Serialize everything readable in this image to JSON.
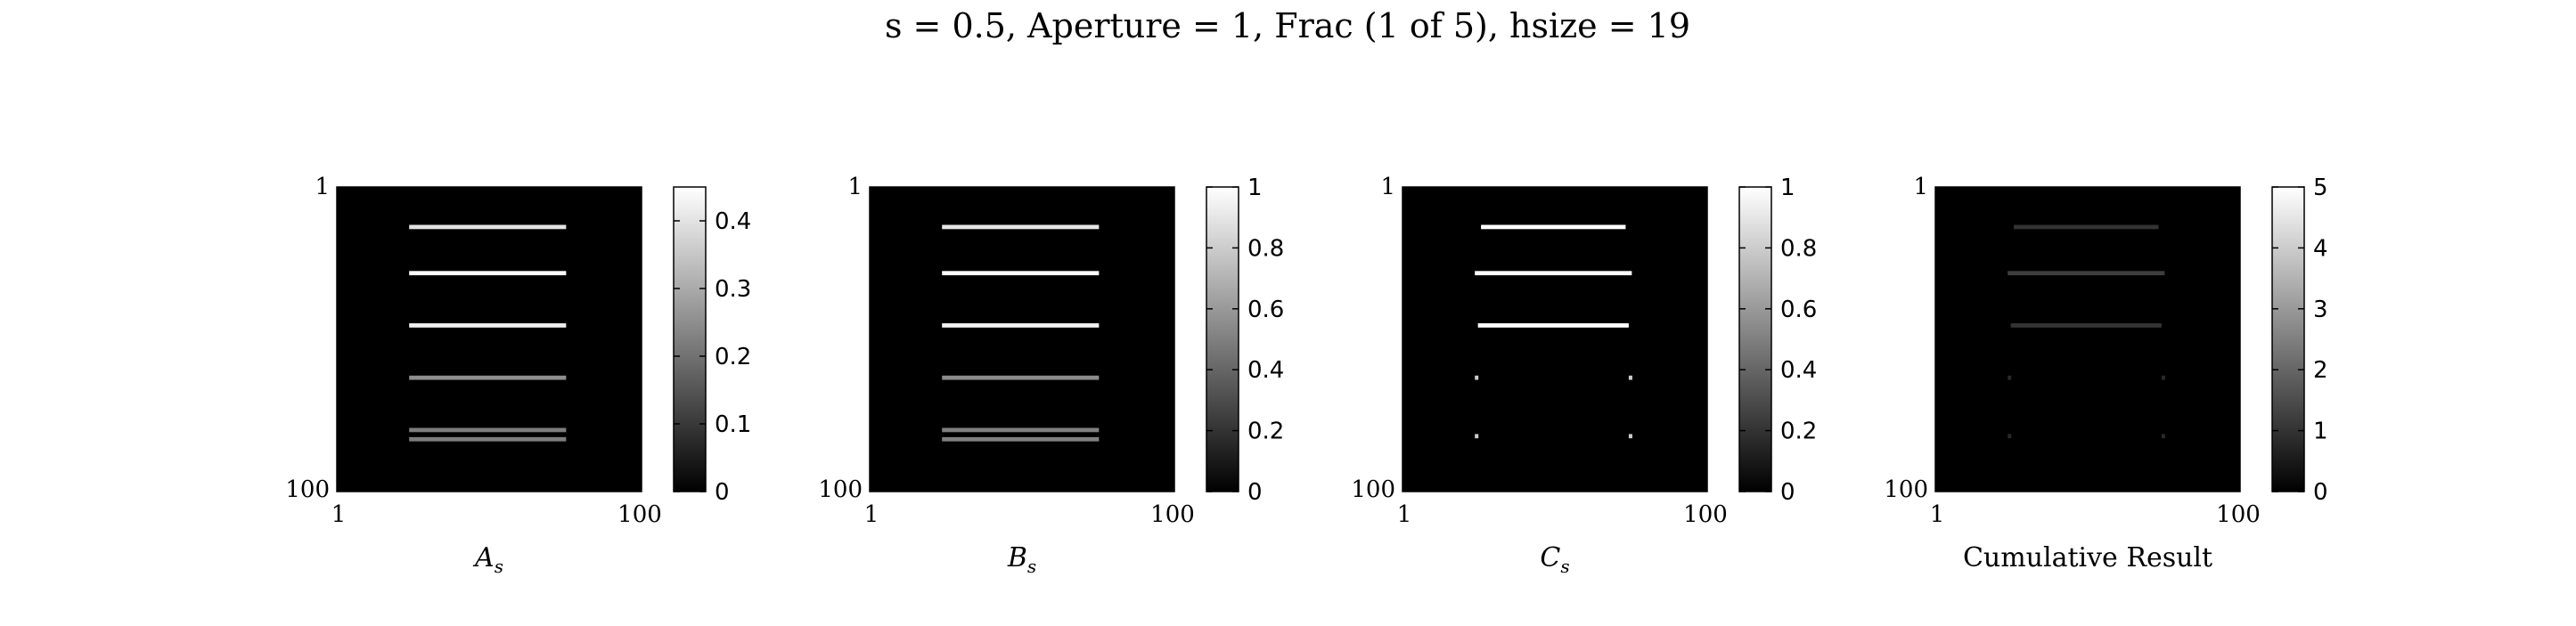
{
  "figure": {
    "title": "s = 0.5, Aperture = 1, Frac (1 of 5), hsize = 19"
  },
  "chart_data": [
    {
      "type": "heatmap",
      "xlabel": "A",
      "xlabel_sub": "s",
      "x_ticks": [
        "1",
        "100"
      ],
      "y_ticks": [
        "1",
        "100"
      ],
      "xlim": [
        1,
        100
      ],
      "ylim": [
        1,
        100
      ],
      "colormap": "gray",
      "background_value": 0,
      "colorbar": {
        "min": 0,
        "max": 0.45,
        "ticks": [
          "0",
          "0.1",
          "0.2",
          "0.3",
          "0.4"
        ],
        "tick_values": [
          0,
          0.1,
          0.2,
          0.3,
          0.4
        ]
      },
      "stripes": [
        {
          "row": 14,
          "x_start": 25,
          "x_end": 75,
          "value": 0.4
        },
        {
          "row": 29,
          "x_start": 25,
          "x_end": 75,
          "value": 0.45
        },
        {
          "row": 46,
          "x_start": 25,
          "x_end": 75,
          "value": 0.42
        },
        {
          "row": 63,
          "x_start": 25,
          "x_end": 75,
          "value": 0.25
        },
        {
          "row": 80,
          "x_start": 25,
          "x_end": 75,
          "value": 0.22
        },
        {
          "row": 83,
          "x_start": 25,
          "x_end": 75,
          "value": 0.22
        }
      ]
    },
    {
      "type": "heatmap",
      "xlabel": "B",
      "xlabel_sub": "s",
      "x_ticks": [
        "1",
        "100"
      ],
      "y_ticks": [
        "1",
        "100"
      ],
      "xlim": [
        1,
        100
      ],
      "ylim": [
        1,
        100
      ],
      "colormap": "gray",
      "background_value": 0,
      "colorbar": {
        "min": 0,
        "max": 1,
        "ticks": [
          "0",
          "0.2",
          "0.4",
          "0.6",
          "0.8",
          "1"
        ],
        "tick_values": [
          0,
          0.2,
          0.4,
          0.6,
          0.8,
          1
        ]
      },
      "stripes": [
        {
          "row": 14,
          "x_start": 25,
          "x_end": 75,
          "value": 0.9
        },
        {
          "row": 29,
          "x_start": 25,
          "x_end": 75,
          "value": 1.0
        },
        {
          "row": 46,
          "x_start": 25,
          "x_end": 75,
          "value": 0.95
        },
        {
          "row": 63,
          "x_start": 25,
          "x_end": 75,
          "value": 0.55
        },
        {
          "row": 80,
          "x_start": 25,
          "x_end": 75,
          "value": 0.5
        },
        {
          "row": 83,
          "x_start": 25,
          "x_end": 75,
          "value": 0.5
        }
      ]
    },
    {
      "type": "heatmap",
      "xlabel": "C",
      "xlabel_sub": "s",
      "x_ticks": [
        "1",
        "100"
      ],
      "y_ticks": [
        "1",
        "100"
      ],
      "xlim": [
        1,
        100
      ],
      "ylim": [
        1,
        100
      ],
      "colormap": "gray",
      "background_value": 0,
      "colorbar": {
        "min": 0,
        "max": 1,
        "ticks": [
          "0",
          "0.2",
          "0.4",
          "0.6",
          "0.8",
          "1"
        ],
        "tick_values": [
          0,
          0.2,
          0.4,
          0.6,
          0.8,
          1
        ]
      },
      "stripes": [
        {
          "row": 14,
          "x_start": 27,
          "x_end": 73,
          "value": 1.0
        },
        {
          "row": 29,
          "x_start": 25,
          "x_end": 75,
          "value": 1.0
        },
        {
          "row": 46,
          "x_start": 26,
          "x_end": 74,
          "value": 1.0
        },
        {
          "row": 63,
          "x_start": 25,
          "x_end": 25,
          "value": 0.8
        },
        {
          "row": 63,
          "x_start": 75,
          "x_end": 75,
          "value": 0.8
        },
        {
          "row": 82,
          "x_start": 25,
          "x_end": 25,
          "value": 0.8
        },
        {
          "row": 82,
          "x_start": 75,
          "x_end": 75,
          "value": 0.8
        }
      ]
    },
    {
      "type": "heatmap",
      "xlabel": "Cumulative Result",
      "xlabel_sub": "",
      "x_ticks": [
        "1",
        "100"
      ],
      "y_ticks": [
        "1",
        "100"
      ],
      "xlim": [
        1,
        100
      ],
      "ylim": [
        1,
        100
      ],
      "colormap": "gray",
      "background_value": 0,
      "colorbar": {
        "min": 0,
        "max": 5,
        "ticks": [
          "0",
          "1",
          "2",
          "3",
          "4",
          "5"
        ],
        "tick_values": [
          0,
          1,
          2,
          3,
          4,
          5
        ]
      },
      "stripes": [
        {
          "row": 14,
          "x_start": 27,
          "x_end": 73,
          "value": 1.0
        },
        {
          "row": 29,
          "x_start": 25,
          "x_end": 75,
          "value": 1.2
        },
        {
          "row": 46,
          "x_start": 26,
          "x_end": 74,
          "value": 1.0
        },
        {
          "row": 63,
          "x_start": 25,
          "x_end": 25,
          "value": 0.8
        },
        {
          "row": 63,
          "x_start": 75,
          "x_end": 75,
          "value": 0.8
        },
        {
          "row": 82,
          "x_start": 25,
          "x_end": 25,
          "value": 0.8
        },
        {
          "row": 82,
          "x_start": 75,
          "x_end": 75,
          "value": 0.8
        }
      ]
    }
  ]
}
